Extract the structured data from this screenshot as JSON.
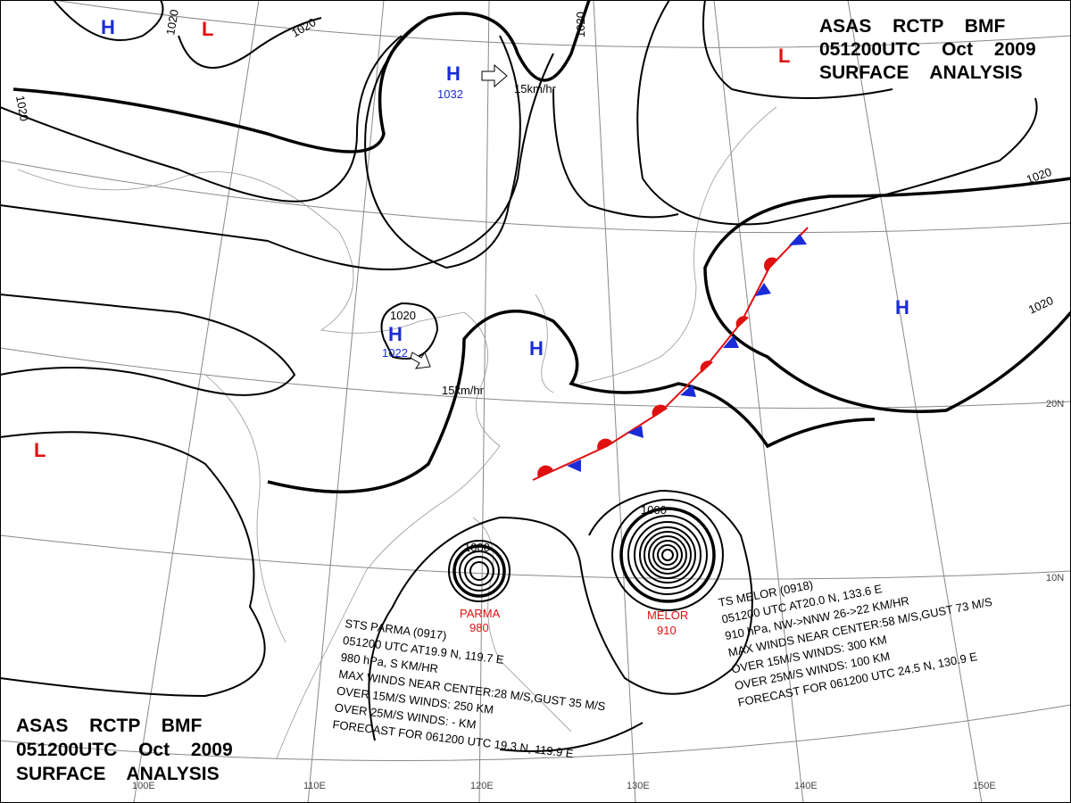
{
  "header_top": {
    "line1": "ASAS RCTP BMF",
    "line2": "051200UTC Oct 2009",
    "line3": "SURFACE ANALYSIS"
  },
  "header_bottom": {
    "line1": "ASAS RCTP BMF",
    "line2": "051200UTC Oct 2009",
    "line3": "SURFACE ANALYSIS"
  },
  "centers": [
    {
      "symbol": "H",
      "value": "1032"
    },
    {
      "symbol": "H",
      "value": "1022"
    },
    {
      "symbol": "H"
    },
    {
      "symbol": "H"
    },
    {
      "symbol": "H"
    },
    {
      "symbol": "L"
    },
    {
      "symbol": "L"
    },
    {
      "symbol": "L"
    }
  ],
  "isobar_labels": [
    "1020",
    "1020",
    "1020",
    "1020",
    "1020",
    "1020",
    "1020",
    "1000",
    "1000"
  ],
  "motions": [
    "15km/hr",
    "15km/hr"
  ],
  "storms": [
    {
      "name": "PARMA",
      "pressure": "980",
      "info": [
        "STS PARMA (0917)",
        "051200 UTC AT19.9 N, 119.7 E",
        "980 hPa, S KM/HR",
        "MAX WINDS NEAR CENTER:28 M/S,GUST 35 M/S",
        "OVER 15M/S WINDS: 250 KM",
        "OVER 25M/S WINDS: - KM",
        "FORECAST FOR 061200 UTC 19.3 N, 119.9 E"
      ]
    },
    {
      "name": "MELOR",
      "pressure": "910",
      "info": [
        "TS MELOR (0918)",
        "051200 UTC AT20.0 N, 133.6 E",
        "910 hPa, NW->NNW 26->22 KM/HR",
        "MAX WINDS NEAR CENTER:58 M/S,GUST 73 M/S",
        "OVER 15M/S WINDS: 300 KM",
        "OVER 25M/S WINDS: 100 KM",
        "FORECAST FOR 061200 UTC 24.5 N, 130.9 E"
      ]
    }
  ],
  "longitudes": [
    "100E",
    "110E",
    "120E",
    "130E",
    "140E",
    "150E"
  ],
  "latitudes": [
    "20N",
    "10N"
  ]
}
